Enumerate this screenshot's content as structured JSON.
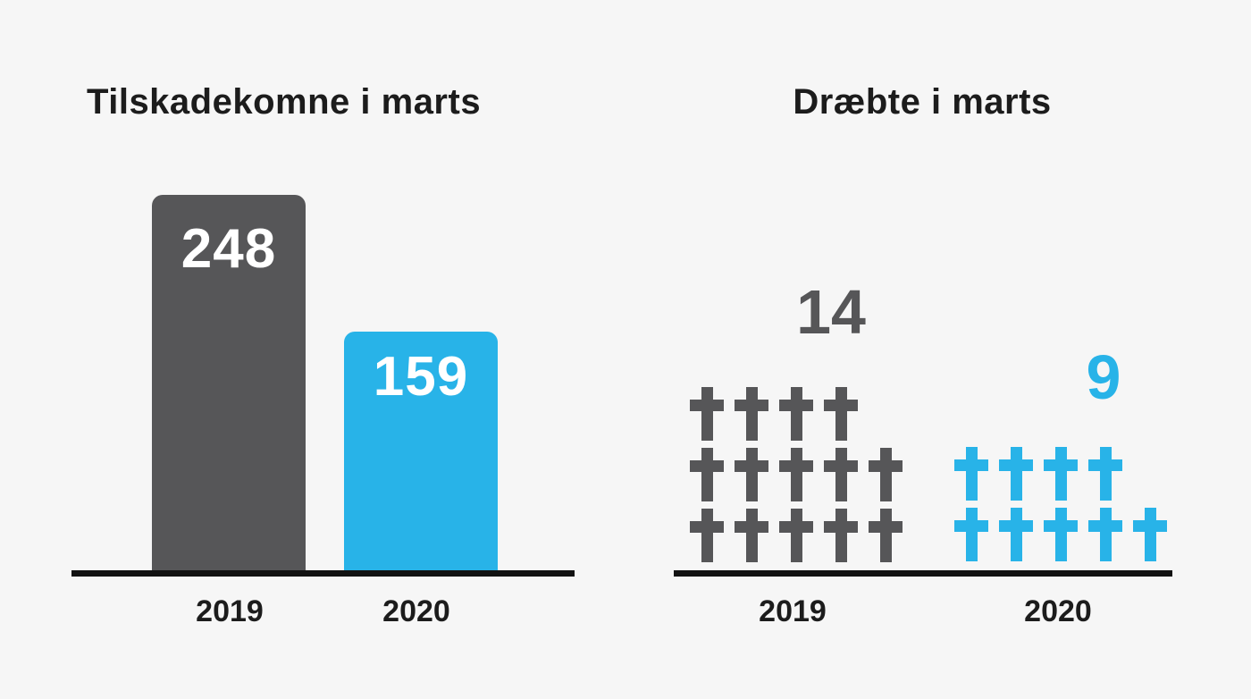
{
  "background": "#f6f6f6",
  "colors": {
    "dark_gray": "#565658",
    "blue": "#28b3e8",
    "axis": "#121212",
    "text": "#1c1c1c"
  },
  "chart_data": [
    {
      "type": "bar",
      "title": "Tilskadekomne i marts",
      "categories": [
        "2019",
        "2020"
      ],
      "values": [
        248,
        159
      ],
      "ylim": [
        0,
        260
      ],
      "grid": false,
      "legend": "none",
      "bar_colors": [
        "#565658",
        "#28b3e8"
      ],
      "label_color": "#ffffff",
      "value_labels": [
        "248",
        "159"
      ]
    },
    {
      "type": "bar",
      "style": "pictogram-latin-crosses",
      "title": "Dræbte i marts",
      "categories": [
        "2019",
        "2020"
      ],
      "values": [
        14,
        9
      ],
      "rows": [
        [
          4,
          5,
          5
        ],
        [
          4,
          5
        ]
      ],
      "icon": "latin-cross",
      "grid": false,
      "legend": "none",
      "icon_colors": [
        "#565658",
        "#28b3e8"
      ],
      "value_labels": [
        "14",
        "9"
      ]
    }
  ]
}
